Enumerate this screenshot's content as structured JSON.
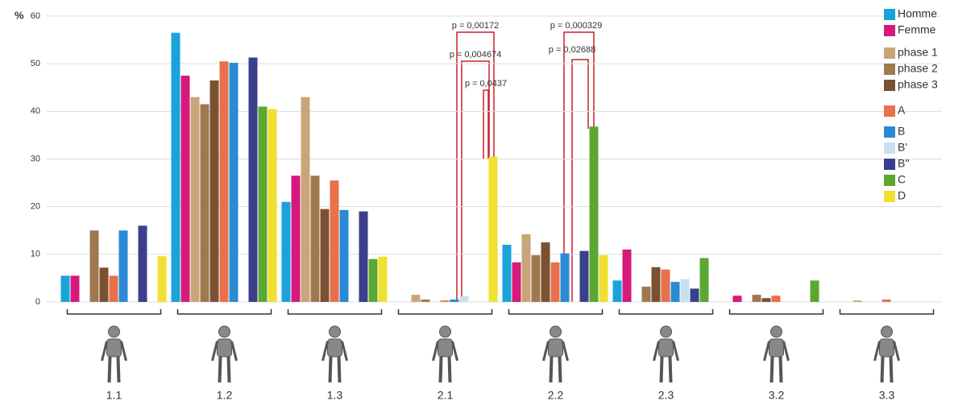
{
  "chart_data": {
    "type": "bar",
    "y_label": "%",
    "categories": [
      "1.1",
      "1.2",
      "1.3",
      "2.1",
      "2.2",
      "2.3",
      "3.2",
      "3.3"
    ],
    "ylim": [
      0,
      60
    ],
    "yticks": [
      0,
      10,
      20,
      30,
      40,
      50,
      60
    ],
    "grid": true,
    "series": [
      {
        "name": "Homme",
        "color": "#1aa3d9",
        "values": [
          5.5,
          56.5,
          21,
          0,
          12,
          4.5,
          0,
          0
        ]
      },
      {
        "name": "Femme",
        "color": "#d6197a",
        "values": [
          5.5,
          47.5,
          26.5,
          0,
          8.3,
          11,
          1.3,
          0
        ]
      },
      {
        "name": "phase 1",
        "color": "#c9a57a",
        "values": [
          0,
          43,
          43,
          1.5,
          14.2,
          0,
          0,
          0.3
        ]
      },
      {
        "name": "phase 2",
        "color": "#a07850",
        "values": [
          15,
          41.5,
          26.5,
          0.5,
          9.8,
          3.2,
          1.5,
          0
        ]
      },
      {
        "name": "phase 3",
        "color": "#7a5232",
        "values": [
          7.2,
          46.5,
          19.5,
          0,
          12.5,
          7.3,
          0.8,
          0
        ]
      },
      {
        "name": "A",
        "color": "#e8704a",
        "values": [
          5.5,
          50.5,
          25.5,
          0.3,
          8.3,
          6.8,
          1.3,
          0.5
        ]
      },
      {
        "name": "B",
        "color": "#2a8ad6",
        "values": [
          15,
          50.2,
          19.3,
          0.5,
          10.2,
          4.2,
          0,
          0
        ]
      },
      {
        "name": "B'",
        "color": "#c8e0f0",
        "values": [
          0,
          0,
          0,
          1.2,
          0,
          4.8,
          0,
          0
        ]
      },
      {
        "name": "B''",
        "color": "#3a3f8c",
        "values": [
          16,
          51.3,
          19,
          0,
          10.7,
          2.8,
          0,
          0
        ]
      },
      {
        "name": "C",
        "color": "#5aa832",
        "values": [
          0,
          41,
          9,
          0,
          36.8,
          9.2,
          4.5,
          0
        ]
      },
      {
        "name": "D",
        "color": "#f0e030",
        "values": [
          9.6,
          40.5,
          9.5,
          30.5,
          9.8,
          0,
          0,
          0
        ]
      }
    ],
    "annotations": [
      "p = 0,00172",
      "p = 0,004674",
      "p = 0,0437",
      "p = 0,000329",
      "p = 0,02688"
    ]
  }
}
